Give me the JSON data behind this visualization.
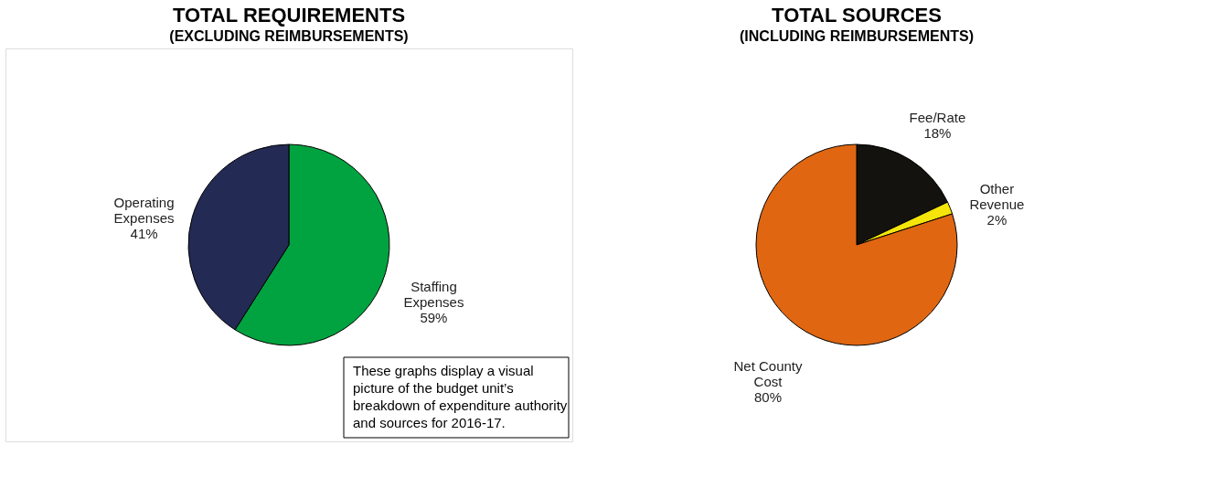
{
  "chart_data": [
    {
      "type": "pie",
      "title": "TOTAL REQUIREMENTS",
      "subtitle": "(EXCLUDING REIMBURSEMENTS)",
      "categories": [
        "Staffing Expenses",
        "Operating Expenses"
      ],
      "values": [
        59,
        41
      ],
      "colors": [
        "#00a33f",
        "#232a54"
      ],
      "value_labels": [
        "59%",
        "41%"
      ],
      "annotations": [
        "These graphs display a visual picture of the budget unit’s breakdown of expenditure authority and sources for 2016-17."
      ]
    },
    {
      "type": "pie",
      "title": "TOTAL SOURCES",
      "subtitle": "(INCLUDING REIMBURSEMENTS)",
      "categories": [
        "Fee/Rate",
        "Other Revenue",
        "Net County Cost"
      ],
      "values": [
        18,
        2,
        80
      ],
      "colors": [
        "#14120e",
        "#f5e50a",
        "#e06611"
      ],
      "value_labels": [
        "18%",
        "2%",
        "80%"
      ]
    }
  ]
}
